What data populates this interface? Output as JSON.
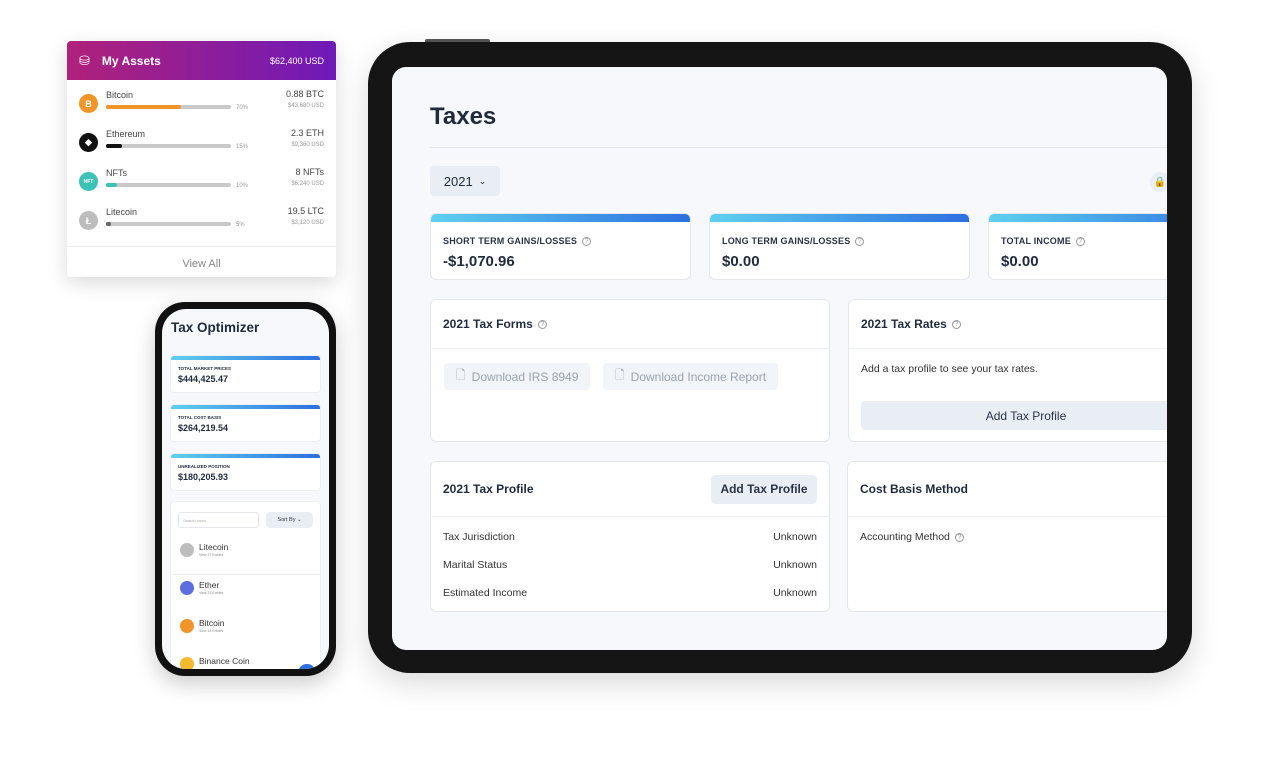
{
  "assets_widget": {
    "title": "My Assets",
    "total": "$62,400 USD",
    "icon": "coins-icon",
    "items": [
      {
        "name": "Bitcoin",
        "percent": 70,
        "percent_label": "70%",
        "amount": "0.88 BTC",
        "usd": "$43,680 USD",
        "color": "#f0952a",
        "icon": "bitcoin-icon",
        "glyph": "B"
      },
      {
        "name": "Ethereum",
        "percent": 15,
        "percent_label": "15%",
        "amount": "2.3 ETH",
        "usd": "$9,360 USD",
        "color": "#111111",
        "icon": "ethereum-icon",
        "glyph": "◆"
      },
      {
        "name": "NFTs",
        "percent": 10,
        "percent_label": "10%",
        "amount": "8 NFTs",
        "usd": "$6,240 USD",
        "color": "#3cc3b5",
        "icon": "nft-icon",
        "glyph": "NFT"
      },
      {
        "name": "Litecoin",
        "percent": 5,
        "percent_label": "5%",
        "amount": "19.5 LTC",
        "usd": "$3,120 USD",
        "color": "#666666",
        "icon": "litecoin-icon",
        "glyph": "Ł"
      }
    ],
    "view_all": "View All"
  },
  "phone": {
    "title": "Tax Optimizer",
    "cards": [
      {
        "label": "TOTAL MARKET PRICES",
        "value": "$444,425.47"
      },
      {
        "label": "TOTAL COST BASIS",
        "value": "$264,219.54"
      },
      {
        "label": "UNREALIZED POSITION",
        "value": "$180,205.93"
      }
    ],
    "search_placeholder": "Search coins",
    "sort_label": "Sort By",
    "coins": [
      {
        "name": "Litecoin",
        "sub": "View 27 Entries",
        "color": "#bdbdbd"
      },
      {
        "name": "Ether",
        "sub": "View 21 Entries",
        "color": "#5d6fe0"
      },
      {
        "name": "Bitcoin",
        "sub": "View 14 Entries",
        "color": "#f0952a"
      },
      {
        "name": "Binance Coin",
        "sub": "",
        "color": "#f3ba2f"
      }
    ]
  },
  "tablet": {
    "title": "Taxes",
    "year": "2021",
    "stats": [
      {
        "label": "SHORT TERM GAINS/LOSSES",
        "value": "-$1,070.96"
      },
      {
        "label": "LONG TERM GAINS/LOSSES",
        "value": "$0.00"
      },
      {
        "label": "TOTAL INCOME",
        "value": "$0.00"
      }
    ],
    "forms": {
      "title": "2021 Tax Forms",
      "download_8949": "Download IRS 8949",
      "download_income": "Download Income Report"
    },
    "rates": {
      "title": "2021 Tax Rates",
      "text": "Add a tax profile to see your tax rates.",
      "button": "Add Tax Profile"
    },
    "profile": {
      "title": "2021 Tax Profile",
      "button": "Add Tax Profile",
      "rows": [
        {
          "label": "Tax Jurisdiction",
          "value": "Unknown"
        },
        {
          "label": "Marital Status",
          "value": "Unknown"
        },
        {
          "label": "Estimated Income",
          "value": "Unknown"
        }
      ]
    },
    "cost_basis": {
      "title": "Cost Basis Method",
      "row_label": "Accounting Method"
    }
  }
}
